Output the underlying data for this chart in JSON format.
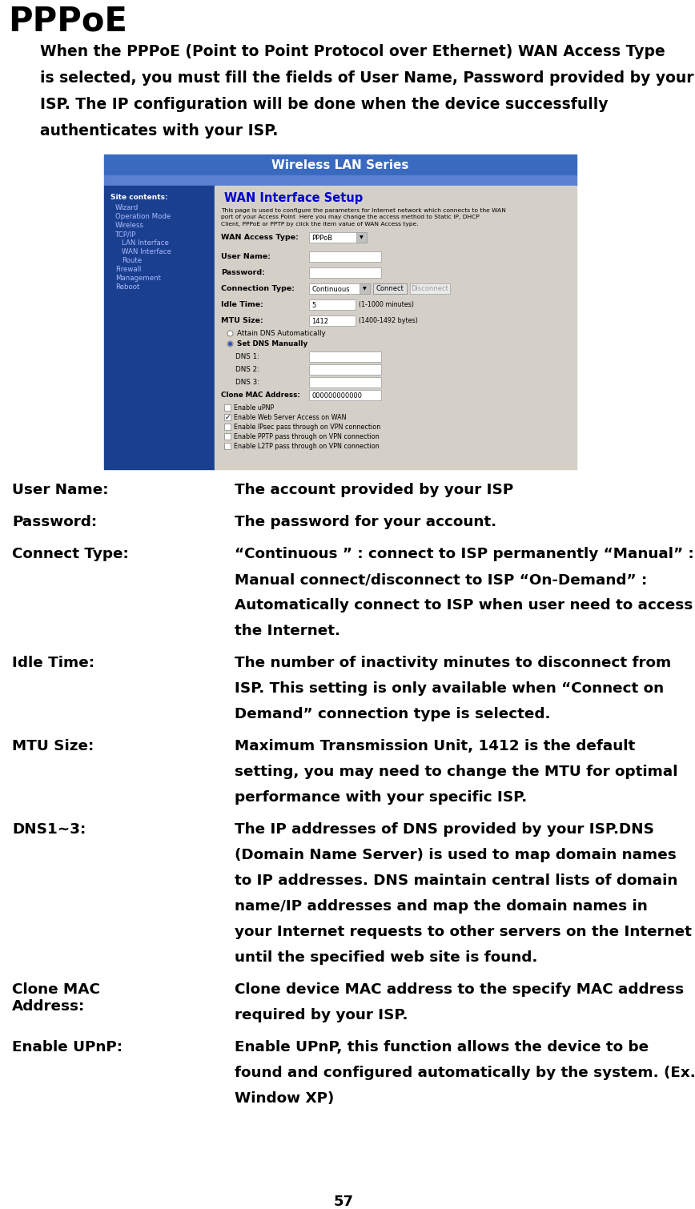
{
  "title": "PPPoE",
  "intro_lines": [
    "When the PPPoE (Point to Point Protocol over Ethernet) WAN Access Type",
    "is selected, you must fill the fields of User Name, Password provided by your",
    "ISP. The IP configuration will be done when the device successfully",
    "authenticates with your ISP."
  ],
  "page_number": "57",
  "bg_color": "#ffffff",
  "table_rows": [
    {
      "label": "User Name:",
      "desc": "The account provided by your ISP"
    },
    {
      "label": "Password:",
      "desc": "The password for your account."
    },
    {
      "label": "Connect Type:",
      "desc": "“Continuous ” : connect to ISP permanently “Manual” :\nManual connect/disconnect to ISP “On-Demand” :\nAutomatically connect to ISP when user need to access\nthe Internet."
    },
    {
      "label": "Idle Time:",
      "desc": "The number of inactivity minutes to disconnect from\nISP. This setting is only available when “Connect on\nDemand” connection type is selected."
    },
    {
      "label": "MTU Size:",
      "desc": "Maximum Transmission Unit, 1412 is the default\nsetting, you may need to change the MTU for optimal\nperformance with your specific ISP."
    },
    {
      "label": "DNS1~3:",
      "desc": "The IP addresses of DNS provided by your ISP.DNS\n(Domain Name Server) is used to map domain names\nto IP addresses. DNS maintain central lists of domain\nname/IP addresses and map the domain names in\nyour Internet requests to other servers on the Internet\nuntil the specified web site is found."
    },
    {
      "label": "Clone MAC\nAddress:",
      "desc": "Clone device MAC address to the specify MAC address\nrequired by your ISP."
    },
    {
      "label": "Enable UPnP:",
      "desc": "Enable UPnP, this function allows the device to be\nfound and configured automatically by the system. (Ex.\nWindow XP)"
    }
  ],
  "screenshot": {
    "header_text": "Wireless LAN Series",
    "header_bg": "#3a6abf",
    "subheader_bg": "#5a80cf",
    "sidebar_bg": "#1a3f8f",
    "sidebar_items": [
      "Site contents:",
      "Wizard",
      "Operation Mode",
      "Wireless",
      "TCP/IP",
      "LAN Interface",
      "WAN Interface",
      "Route",
      "Firewall",
      "Management",
      "Reboot"
    ],
    "indent_items": [
      "LAN Interface",
      "WAN Interface",
      "Route"
    ],
    "content_bg": "#d4d0c8",
    "title_text": "WAN Interface Setup",
    "title_color": "#0000cc",
    "desc_text": "This page is used to configure the parameters for Internet network which connects to the WAN\nport of your Access Point  Here you may change the access method to Static IP, DHCP\nClient, PPPoE or PPTP by click the item value of WAN Access type.",
    "checkboxes": [
      {
        "label": "Enable uPNP",
        "checked": false
      },
      {
        "label": "Enable Web Server Access on WAN",
        "checked": true
      },
      {
        "label": "Enable IPsec pass through on VPN connection",
        "checked": false
      },
      {
        "label": "Enable PPTP pass through on VPN connection",
        "checked": false
      },
      {
        "label": "Enable L2TP pass through on VPN connection",
        "checked": false
      }
    ]
  }
}
